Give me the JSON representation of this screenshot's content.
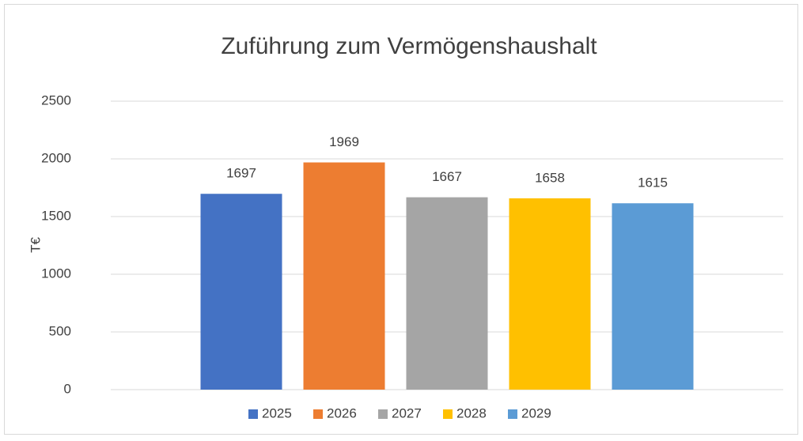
{
  "chart_data": {
    "type": "bar",
    "title": "Zuführung zum Vermögenshaushalt",
    "ylabel": "T€",
    "categories": [
      null
    ],
    "series": [
      {
        "name": "2025",
        "color": "#4472c4",
        "values": [
          1697
        ]
      },
      {
        "name": "2026",
        "color": "#ed7d31",
        "values": [
          1969
        ]
      },
      {
        "name": "2027",
        "color": "#a5a5a5",
        "values": [
          1667
        ]
      },
      {
        "name": "2028",
        "color": "#ffc000",
        "values": [
          1658
        ]
      },
      {
        "name": "2029",
        "color": "#5b9bd5",
        "values": [
          1615
        ]
      }
    ],
    "ylim": [
      0,
      2500
    ],
    "yticks": [
      0,
      500,
      1000,
      1500,
      2000,
      2500
    ],
    "grid": true,
    "legend": "bottom",
    "data_labels": true
  }
}
